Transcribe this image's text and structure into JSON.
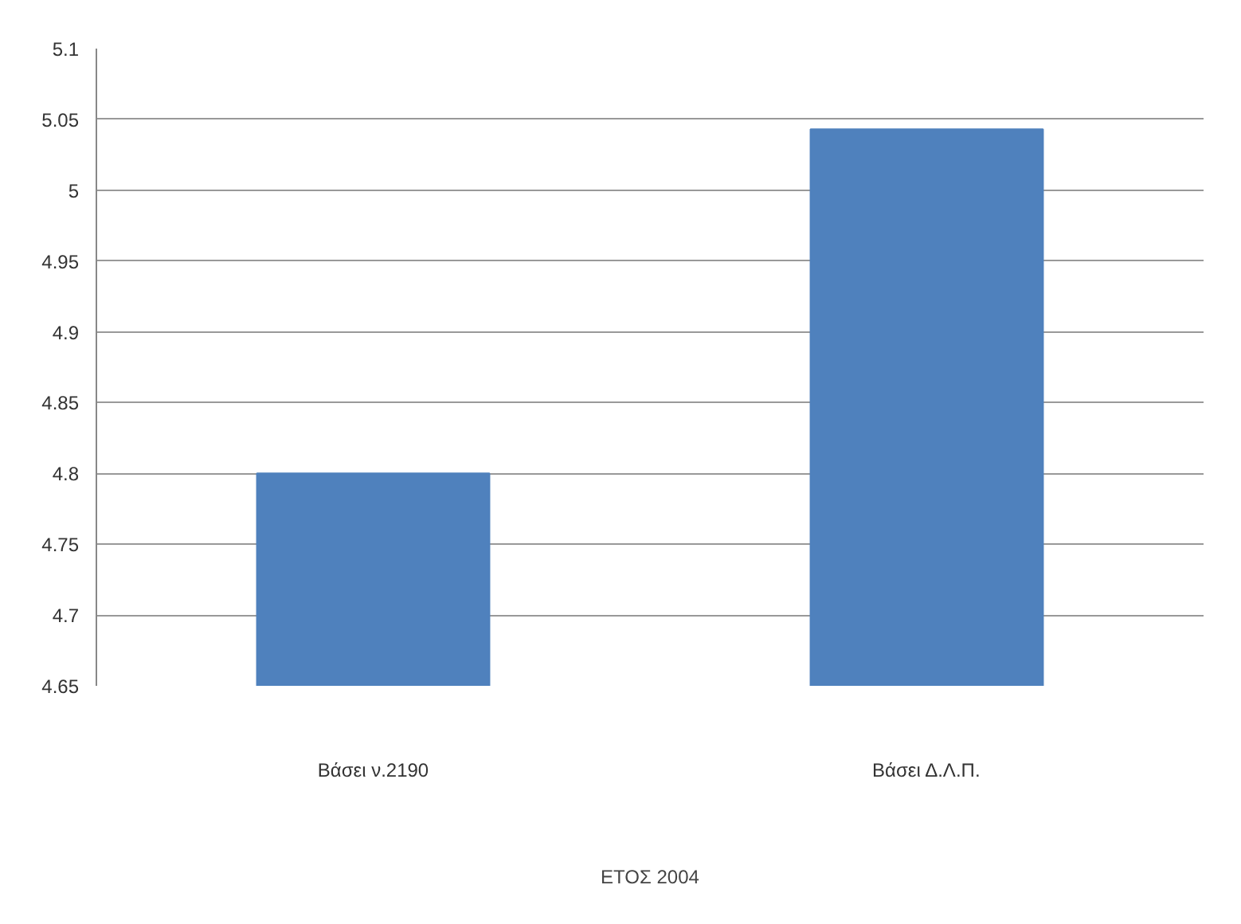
{
  "chart_data": {
    "type": "bar",
    "categories": [
      "Βάσει ν.2190",
      "Βάσει Δ.Λ.Π."
    ],
    "values": [
      4.8,
      5.043
    ],
    "color": "#4f81bd",
    "xlabel": "ΕΤΟΣ 2004",
    "ylim": [
      4.65,
      5.1
    ],
    "yticks": [
      4.65,
      4.7,
      4.75,
      4.8,
      4.85,
      4.9,
      4.95,
      5,
      5.05,
      5.1
    ],
    "grid": "y"
  }
}
